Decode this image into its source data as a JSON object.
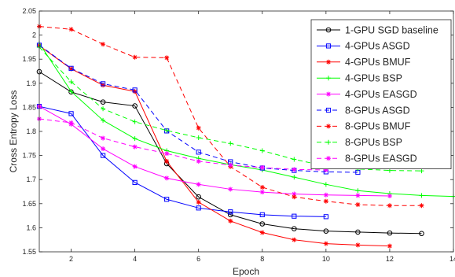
{
  "chart_data": {
    "type": "line",
    "title": "",
    "xlabel": "Epoch",
    "ylabel": "Cross Entropy Loss",
    "xlim": [
      1,
      14
    ],
    "ylim": [
      1.55,
      2.05
    ],
    "xticks": [
      2,
      4,
      6,
      8,
      10,
      12,
      14
    ],
    "yticks": [
      1.55,
      1.6,
      1.65,
      1.7,
      1.75,
      1.8,
      1.85,
      1.9,
      1.95,
      2,
      2.05
    ],
    "ytick_labels": [
      "1.55",
      "1.6",
      "1.65",
      "1.7",
      "1.75",
      "1.8",
      "1.85",
      "1.9",
      "1.95",
      "2",
      "2.05"
    ],
    "legend_position": "top-right",
    "grid": false,
    "series": [
      {
        "name": "1-GPU SGD baseline",
        "color": "#000000",
        "dash": "solid",
        "marker": "circle",
        "x": [
          1,
          2,
          3,
          4,
          5,
          6,
          7,
          8,
          9,
          10,
          11,
          12,
          13
        ],
        "y": [
          1.924,
          1.882,
          1.861,
          1.853,
          1.733,
          1.664,
          1.627,
          1.608,
          1.598,
          1.593,
          1.591,
          1.589,
          1.588
        ]
      },
      {
        "name": "4-GPUs ASGD",
        "color": "#0000ff",
        "dash": "solid",
        "marker": "square",
        "x": [
          1,
          2,
          3,
          4,
          5,
          6,
          7,
          8,
          9,
          10
        ],
        "y": [
          1.852,
          1.837,
          1.75,
          1.694,
          1.659,
          1.641,
          1.633,
          1.627,
          1.624,
          1.623
        ]
      },
      {
        "name": "4-GPUs BMUF",
        "color": "#ff0000",
        "dash": "solid",
        "marker": "star",
        "x": [
          1,
          2,
          3,
          4,
          5,
          6,
          7,
          8,
          9,
          10,
          11,
          12
        ],
        "y": [
          1.978,
          1.93,
          1.896,
          1.883,
          1.738,
          1.653,
          1.614,
          1.59,
          1.575,
          1.567,
          1.564,
          1.562
        ]
      },
      {
        "name": "4-GPUs BSP",
        "color": "#00ff00",
        "dash": "solid",
        "marker": "plus",
        "x": [
          1,
          2,
          3,
          4,
          5,
          6,
          7,
          8,
          9,
          10,
          11,
          12,
          13,
          14
        ],
        "y": [
          1.983,
          1.883,
          1.823,
          1.785,
          1.76,
          1.744,
          1.731,
          1.72,
          1.705,
          1.69,
          1.677,
          1.671,
          1.667,
          1.665
        ]
      },
      {
        "name": "4-GPUs EASGD",
        "color": "#ff00ff",
        "dash": "solid",
        "marker": "star",
        "x": [
          1,
          2,
          3,
          4,
          5,
          6,
          7,
          8,
          9,
          10,
          11,
          12
        ],
        "y": [
          1.852,
          1.815,
          1.764,
          1.727,
          1.703,
          1.69,
          1.68,
          1.674,
          1.67,
          1.668,
          1.667,
          1.666
        ]
      },
      {
        "name": "8-GPUs ASGD",
        "color": "#0000ff",
        "dash": "dashed",
        "marker": "square",
        "x": [
          1,
          2,
          3,
          4,
          5,
          6,
          7,
          8,
          9,
          10,
          11
        ],
        "y": [
          1.979,
          1.931,
          1.899,
          1.886,
          1.801,
          1.757,
          1.737,
          1.724,
          1.719,
          1.716,
          1.715
        ]
      },
      {
        "name": "8-GPUs BMUF",
        "color": "#ff0000",
        "dash": "dashed",
        "marker": "star",
        "x": [
          1,
          2,
          3,
          4,
          5,
          6,
          7,
          8,
          9,
          10,
          11,
          12,
          13
        ],
        "y": [
          2.018,
          2.012,
          1.981,
          1.954,
          1.953,
          1.807,
          1.727,
          1.684,
          1.664,
          1.655,
          1.648,
          1.646,
          1.646
        ]
      },
      {
        "name": "8-GPUs BSP",
        "color": "#00ff00",
        "dash": "dashed",
        "marker": "plus",
        "x": [
          1,
          2,
          3,
          4,
          5,
          6,
          7,
          8,
          9,
          10,
          11,
          12,
          13
        ],
        "y": [
          1.975,
          1.903,
          1.847,
          1.82,
          1.802,
          1.787,
          1.775,
          1.76,
          1.742,
          1.728,
          1.722,
          1.719,
          1.718
        ]
      },
      {
        "name": "8-GPUs EASGD",
        "color": "#ff00ff",
        "dash": "dashed",
        "marker": "star",
        "x": [
          1,
          2,
          3,
          4,
          5,
          6,
          7,
          8,
          9,
          10
        ],
        "y": [
          1.826,
          1.818,
          1.786,
          1.768,
          1.754,
          1.738,
          1.73,
          1.725,
          1.721,
          1.72
        ]
      }
    ]
  }
}
